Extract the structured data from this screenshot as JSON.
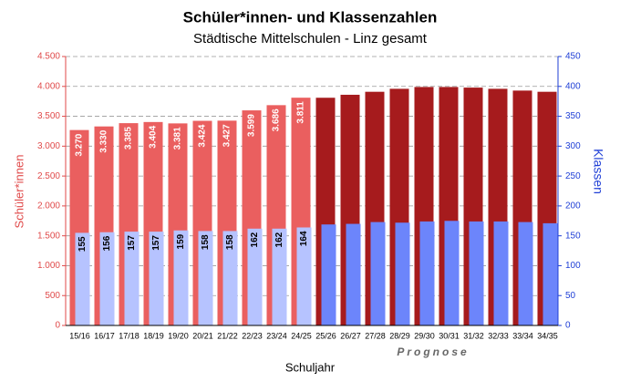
{
  "chart_data": {
    "type": "bar",
    "title": "Schüler*innen- und Klassenzahlen",
    "subtitle": "Städtische Mittelschulen - Linz gesamt",
    "xlabel": "Schuljahr",
    "ylabel": "Schüler*innen",
    "y2label": "Klassen",
    "annotation": "Prognose",
    "categories": [
      "15/16",
      "16/17",
      "17/18",
      "18/19",
      "19/20",
      "20/21",
      "21/22",
      "22/23",
      "23/24",
      "24/25",
      "25/26",
      "26/27",
      "27/28",
      "28/29",
      "29/30",
      "30/31",
      "31/32",
      "32/33",
      "33/34",
      "34/35"
    ],
    "series": [
      {
        "name": "Schüler*innen",
        "values": [
          3270,
          3330,
          3385,
          3404,
          3381,
          3424,
          3427,
          3599,
          3686,
          3811,
          3810,
          3860,
          3910,
          3960,
          3990,
          3990,
          3980,
          3960,
          3930,
          3910
        ],
        "value_labels": [
          "3.270",
          "3.330",
          "3.385",
          "3.404",
          "3.381",
          "3.424",
          "3.427",
          "3.599",
          "3.686",
          "3.811",
          null,
          null,
          null,
          null,
          null,
          null,
          null,
          null,
          null,
          null
        ],
        "colors": [
          "#ea5f5f",
          "#ea5f5f",
          "#ea5f5f",
          "#ea5f5f",
          "#ea5f5f",
          "#ea5f5f",
          "#ea5f5f",
          "#ea5f5f",
          "#ea5f5f",
          "#ea5f5f",
          "#a61b1d",
          "#a61b1d",
          "#a61b1d",
          "#a61b1d",
          "#a61b1d",
          "#a61b1d",
          "#a61b1d",
          "#a61b1d",
          "#a61b1d",
          "#a61b1d"
        ]
      },
      {
        "name": "Klassen",
        "axis": "y2",
        "values": [
          155,
          156,
          157,
          157,
          159,
          158,
          158,
          162,
          162,
          164,
          169,
          170,
          173,
          172,
          174,
          175,
          174,
          174,
          173,
          171
        ],
        "value_labels": [
          "155",
          "156",
          "157",
          "157",
          "159",
          "158",
          "158",
          "162",
          "162",
          "164",
          null,
          null,
          null,
          null,
          null,
          null,
          null,
          null,
          null,
          null
        ],
        "colors": [
          "#b6c3ff",
          "#b6c3ff",
          "#b6c3ff",
          "#b6c3ff",
          "#b6c3ff",
          "#b6c3ff",
          "#b6c3ff",
          "#b6c3ff",
          "#b6c3ff",
          "#b6c3ff",
          "#6c85fb",
          "#6c85fb",
          "#6c85fb",
          "#6c85fb",
          "#6c85fb",
          "#6c85fb",
          "#6c85fb",
          "#6c85fb",
          "#6c85fb",
          "#6c85fb"
        ]
      }
    ],
    "ylim": [
      0,
      4500
    ],
    "yticks": [
      0,
      {
        "value": 500,
        "label": "500"
      },
      {
        "value": 1000,
        "label": "1.000"
      },
      {
        "value": 1500,
        "label": "1.500"
      },
      {
        "value": 2000,
        "label": "2.000"
      },
      {
        "value": 2500,
        "label": "2.500"
      },
      {
        "value": 3000,
        "label": "3.000"
      },
      {
        "value": 3500,
        "label": "3.500"
      },
      {
        "value": 4000,
        "label": "4.000"
      },
      {
        "value": 4500,
        "label": "4.500"
      }
    ],
    "y2lim": [
      0,
      450
    ],
    "y2ticks": [
      0,
      50,
      100,
      150,
      200,
      250,
      300,
      350,
      400,
      450
    ],
    "ycolor": "#e04a4a",
    "y2color": "#1f3fd6",
    "grid": true
  }
}
